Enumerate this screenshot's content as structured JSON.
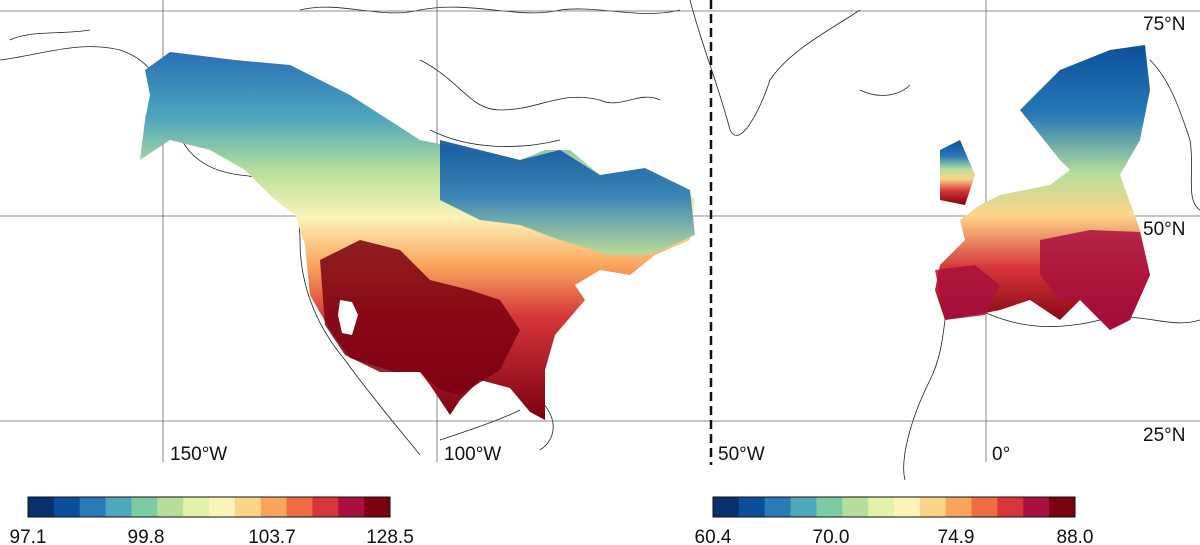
{
  "map": {
    "latitude_labels": [
      "75°N",
      "50°N",
      "25°N"
    ],
    "longitude_labels": [
      "150°W",
      "100°W",
      "50°W",
      "0°"
    ],
    "divider": "dashed"
  },
  "legends": {
    "north_america": {
      "colors": [
        "#08306b",
        "#0b4f9c",
        "#2a7ab7",
        "#4ea6bd",
        "#7ccba2",
        "#b5df9a",
        "#e2f2a6",
        "#fbf3b8",
        "#fdd58a",
        "#f9a55c",
        "#ef6b42",
        "#d6363a",
        "#a8113d",
        "#7a0010"
      ],
      "tick_labels": [
        "97.1",
        "99.8",
        "103.7",
        "128.5"
      ]
    },
    "europe": {
      "colors": [
        "#08306b",
        "#0b4f9c",
        "#2a7ab7",
        "#4ea6bd",
        "#7ccba2",
        "#b5df9a",
        "#e2f2a6",
        "#fbf3b8",
        "#fdd58a",
        "#f9a55c",
        "#ef6b42",
        "#d6363a",
        "#a8113d",
        "#7a0010"
      ],
      "tick_labels": [
        "60.4",
        "70.0",
        "74.9",
        "88.0"
      ]
    }
  }
}
